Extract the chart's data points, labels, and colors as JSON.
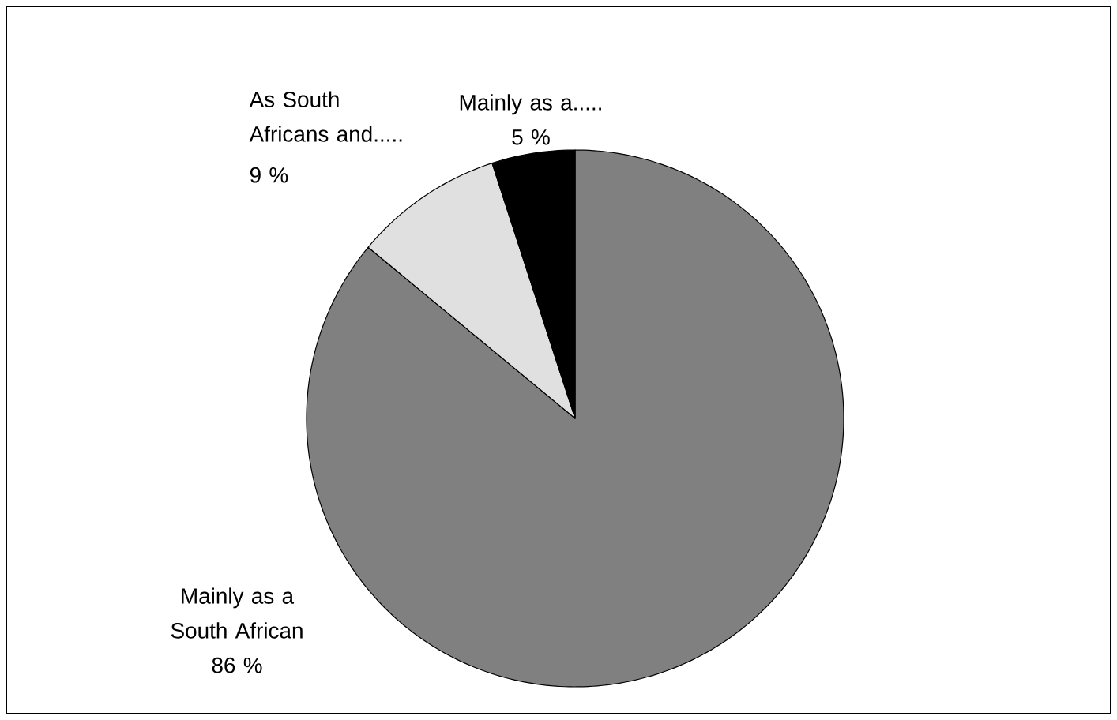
{
  "chart_data": {
    "type": "pie",
    "categories": [
      "Mainly as a South African",
      "As South Africans and.....",
      "Mainly as a....."
    ],
    "values": [
      86,
      9,
      5
    ],
    "colors": [
      "#808080",
      "#e0e0e0",
      "#000000"
    ],
    "value_labels": [
      "86 %",
      "9 %",
      "5 %"
    ]
  }
}
